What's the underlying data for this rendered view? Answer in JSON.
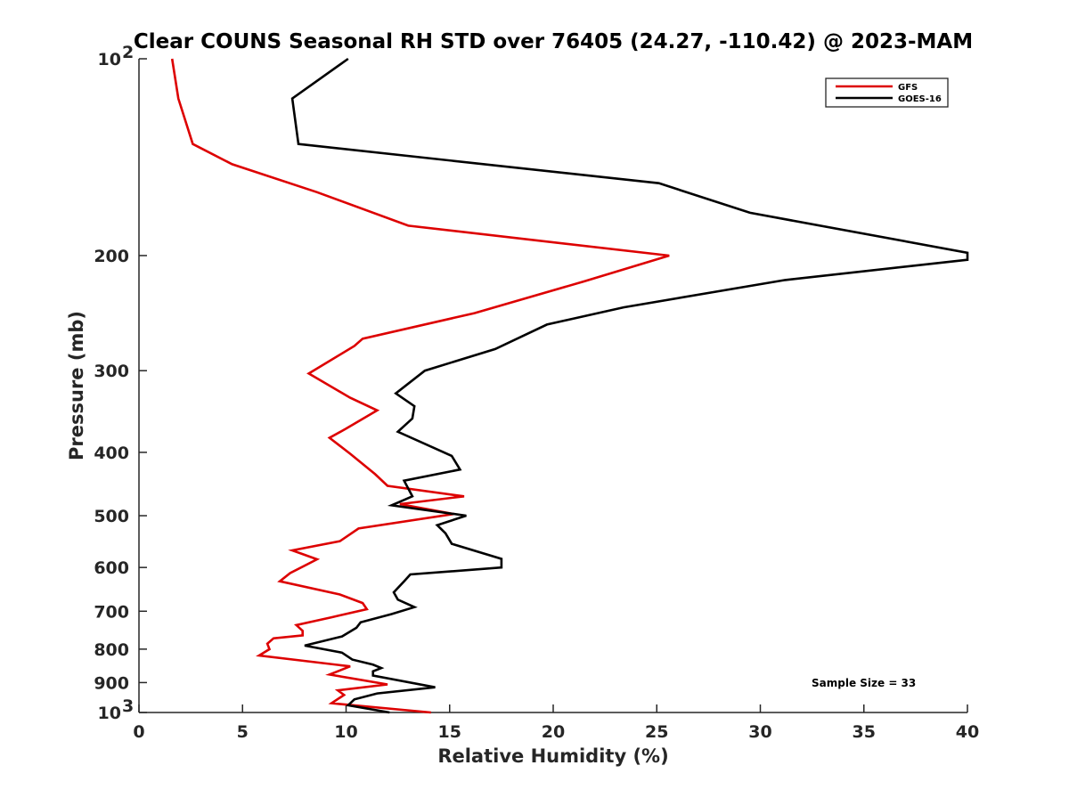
{
  "chart_data": {
    "type": "line",
    "title": "Clear COUNS Seasonal RH STD over 76405 (24.27, -110.42) @ 2023-MAM",
    "xlabel": "Relative Humidity (%)",
    "ylabel": "Pressure (mb)",
    "xlim": [
      0,
      40
    ],
    "ylim": [
      100,
      1000
    ],
    "y_scale": "log",
    "y_direction": "reversed",
    "x_ticks": [
      0,
      5,
      10,
      15,
      20,
      25,
      30,
      35,
      40
    ],
    "x_tick_labels": [
      "0",
      "5",
      "10",
      "15",
      "20",
      "25",
      "30",
      "35",
      "40"
    ],
    "y_ticks": [
      {
        "value": 100,
        "label": "10",
        "sup": "2"
      },
      {
        "value": 200,
        "label": "200",
        "sup": ""
      },
      {
        "value": 300,
        "label": "300",
        "sup": ""
      },
      {
        "value": 400,
        "label": "400",
        "sup": ""
      },
      {
        "value": 500,
        "label": "500",
        "sup": ""
      },
      {
        "value": 600,
        "label": "600",
        "sup": ""
      },
      {
        "value": 700,
        "label": "700",
        "sup": ""
      },
      {
        "value": 800,
        "label": "800",
        "sup": ""
      },
      {
        "value": 900,
        "label": "900",
        "sup": ""
      },
      {
        "value": 1000,
        "label": "10",
        "sup": "3"
      }
    ],
    "legend_position": "top-right",
    "annotation": "Sample Size = 33",
    "series": [
      {
        "name": "GFS",
        "color": "#dd0000",
        "points": [
          [
            1.6,
            100
          ],
          [
            1.9,
            115
          ],
          [
            2.6,
            135
          ],
          [
            4.5,
            145
          ],
          [
            8.6,
            160
          ],
          [
            13.0,
            180
          ],
          [
            25.6,
            200
          ],
          [
            21.5,
            219
          ],
          [
            16.2,
            245
          ],
          [
            10.8,
            268
          ],
          [
            10.4,
            275
          ],
          [
            8.2,
            303
          ],
          [
            10.2,
            330
          ],
          [
            11.5,
            345
          ],
          [
            10.0,
            368
          ],
          [
            9.2,
            380
          ],
          [
            10.2,
            402
          ],
          [
            11.4,
            432
          ],
          [
            12.0,
            450
          ],
          [
            15.7,
            467
          ],
          [
            12.6,
            480
          ],
          [
            15.2,
            497
          ],
          [
            10.6,
            523
          ],
          [
            9.7,
            547
          ],
          [
            7.4,
            565
          ],
          [
            8.6,
            583
          ],
          [
            7.3,
            612
          ],
          [
            6.8,
            630
          ],
          [
            9.7,
            660
          ],
          [
            10.8,
            680
          ],
          [
            11.0,
            695
          ],
          [
            9.3,
            715
          ],
          [
            7.6,
            735
          ],
          [
            7.9,
            750
          ],
          [
            7.9,
            762
          ],
          [
            6.5,
            770
          ],
          [
            6.2,
            785
          ],
          [
            6.3,
            800
          ],
          [
            5.8,
            818
          ],
          [
            10.2,
            850
          ],
          [
            9.2,
            875
          ],
          [
            12.0,
            906
          ],
          [
            9.6,
            925
          ],
          [
            9.9,
            940
          ],
          [
            9.3,
            968
          ],
          [
            14.1,
            1000
          ]
        ]
      },
      {
        "name": "GOES-16",
        "color": "#000000",
        "points": [
          [
            10.1,
            100
          ],
          [
            7.4,
            115
          ],
          [
            7.7,
            135
          ],
          [
            25.1,
            155
          ],
          [
            29.5,
            172
          ],
          [
            40.0,
            198
          ],
          [
            40.0,
            203
          ],
          [
            31.2,
            218
          ],
          [
            23.4,
            240
          ],
          [
            19.7,
            255
          ],
          [
            17.2,
            278
          ],
          [
            13.8,
            300
          ],
          [
            12.4,
            325
          ],
          [
            13.3,
            340
          ],
          [
            13.2,
            355
          ],
          [
            12.5,
            372
          ],
          [
            15.1,
            405
          ],
          [
            15.5,
            425
          ],
          [
            12.8,
            442
          ],
          [
            13.2,
            467
          ],
          [
            12.2,
            482
          ],
          [
            15.8,
            500
          ],
          [
            14.4,
            517
          ],
          [
            14.8,
            532
          ],
          [
            15.1,
            552
          ],
          [
            17.5,
            582
          ],
          [
            17.5,
            600
          ],
          [
            13.1,
            615
          ],
          [
            12.8,
            630
          ],
          [
            12.3,
            655
          ],
          [
            12.5,
            672
          ],
          [
            13.3,
            690
          ],
          [
            12.2,
            707
          ],
          [
            10.7,
            728
          ],
          [
            10.5,
            742
          ],
          [
            9.8,
            765
          ],
          [
            8.0,
            790
          ],
          [
            9.8,
            810
          ],
          [
            10.3,
            830
          ],
          [
            11.3,
            845
          ],
          [
            11.7,
            855
          ],
          [
            11.3,
            865
          ],
          [
            11.3,
            878
          ],
          [
            14.3,
            915
          ],
          [
            11.5,
            935
          ],
          [
            10.4,
            955
          ],
          [
            10.1,
            975
          ],
          [
            12.1,
            1000
          ]
        ]
      }
    ]
  }
}
